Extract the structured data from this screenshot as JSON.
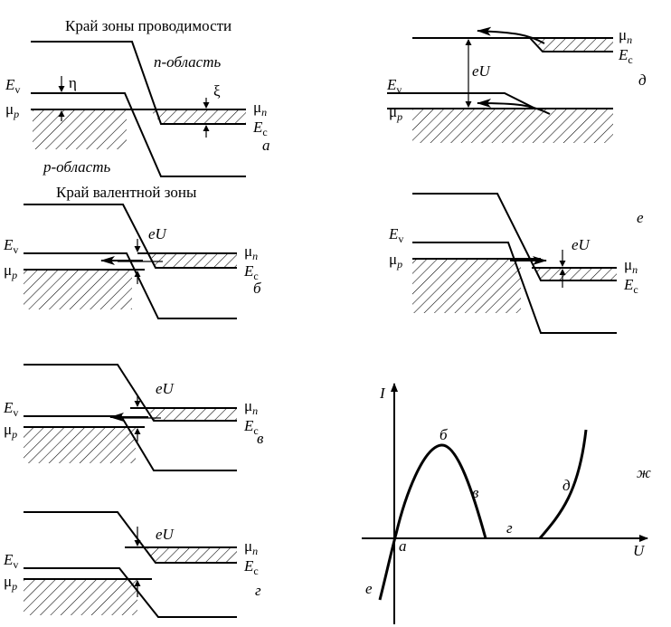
{
  "figure": {
    "labels": {
      "conduction_edge": "Край зоны проводимости",
      "valence_edge": "Край валентной зоны",
      "n_region": "n-область",
      "p_region": "p-область",
      "Ev": "E",
      "Ev_sub": "v",
      "Ec": "E",
      "Ec_sub": "c",
      "mu_p": "μ",
      "mu_p_sub": "p",
      "mu_n": "μ",
      "mu_n_sub": "n",
      "eta": "η",
      "xi": "ξ",
      "eU": "eU",
      "axis_I": "I",
      "axis_U": "U"
    },
    "panels": [
      "а",
      "б",
      "в",
      "г",
      "д",
      "е",
      "ж"
    ],
    "curve_points": [
      "а",
      "б",
      "в",
      "г",
      "д",
      "е"
    ]
  }
}
